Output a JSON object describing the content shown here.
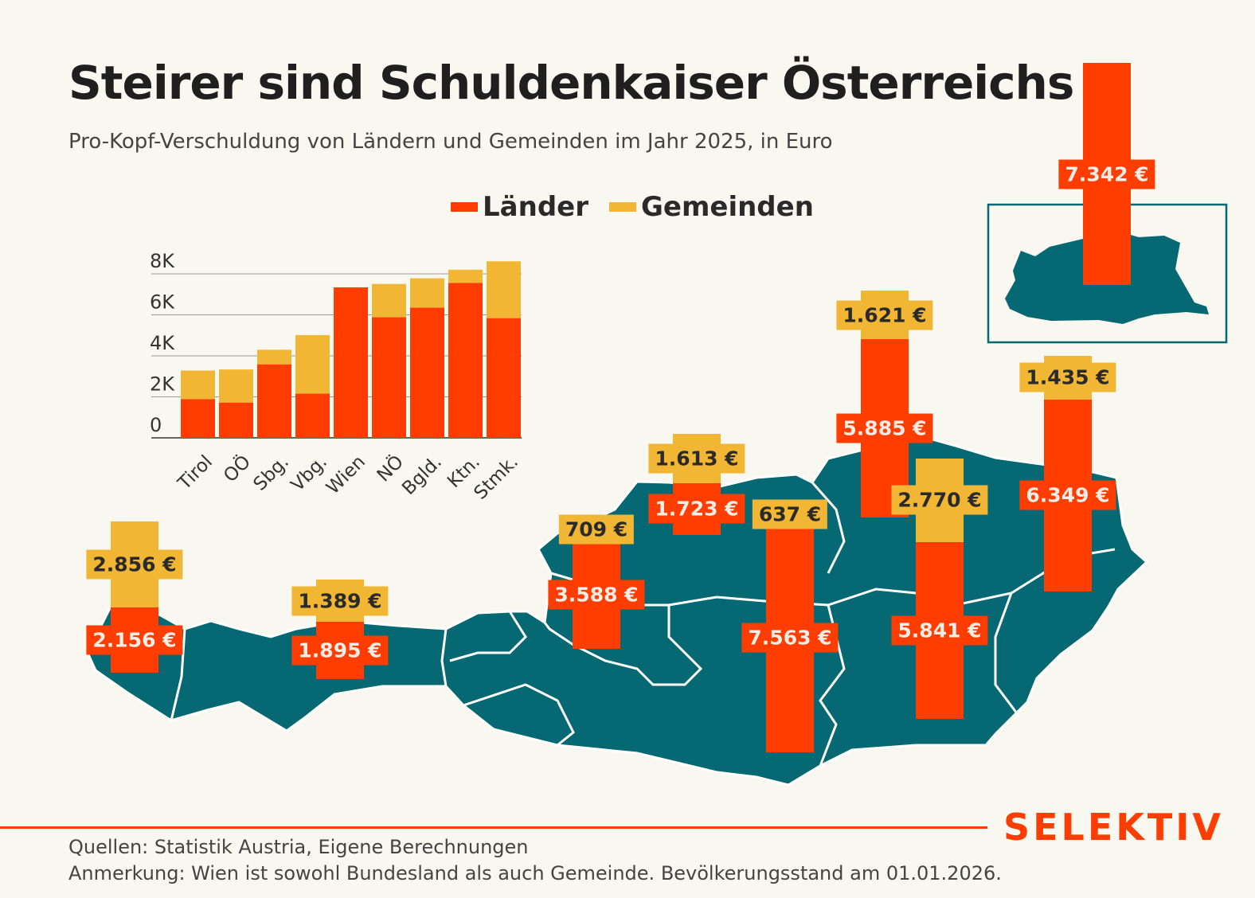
{
  "header": {
    "title": "Steirer sind Schuldenkaiser Österreichs",
    "subtitle": "Pro-Kopf-Verschuldung von Ländern und Gemeinden im Jahr 2025, in Euro"
  },
  "colors": {
    "laender": "#FF3D00",
    "gemeinden": "#F2B635",
    "map": "#066873",
    "background": "#F8F7F0"
  },
  "chart_data": [
    {
      "type": "bar",
      "stacked": true,
      "categories": [
        "Tirol",
        "OÖ",
        "Sbg.",
        "Vbg.",
        "Wien",
        "NÖ",
        "Bgld.",
        "Ktn.",
        "Stmk."
      ],
      "series": [
        {
          "name": "Länder",
          "values": [
            1895,
            1723,
            3588,
            2156,
            7342,
            5885,
            6349,
            7563,
            5841
          ]
        },
        {
          "name": "Gemeinden",
          "values": [
            1389,
            1613,
            709,
            2856,
            0,
            1621,
            1435,
            637,
            2770
          ]
        }
      ],
      "yticks": [
        "0",
        "2K",
        "4K",
        "6K",
        "8K"
      ],
      "ylim": [
        0,
        8000
      ],
      "grid": true,
      "legend": "top"
    },
    {
      "type": "map-bars",
      "regions": [
        {
          "name": "Vbg.",
          "laender": "2.156 €",
          "gemeinden": "2.856 €",
          "l": 2156,
          "g": 2856
        },
        {
          "name": "Tirol",
          "laender": "1.895 €",
          "gemeinden": "1.389 €",
          "l": 1895,
          "g": 1389
        },
        {
          "name": "Sbg.",
          "laender": "3.588 €",
          "gemeinden": "709 €",
          "l": 3588,
          "g": 709
        },
        {
          "name": "OÖ",
          "laender": "1.723 €",
          "gemeinden": "1.613 €",
          "l": 1723,
          "g": 1613
        },
        {
          "name": "Ktn.",
          "laender": "7.563 €",
          "gemeinden": "637 €",
          "l": 7563,
          "g": 637
        },
        {
          "name": "NÖ",
          "laender": "5.885 €",
          "gemeinden": "1.621 €",
          "l": 5885,
          "g": 1621
        },
        {
          "name": "Stmk.",
          "laender": "5.841 €",
          "gemeinden": "2.770 €",
          "l": 5841,
          "g": 2770
        },
        {
          "name": "Bgld.",
          "laender": "6.349 €",
          "gemeinden": "1.435 €",
          "l": 6349,
          "g": 1435
        },
        {
          "name": "Wien",
          "laender": "7.342 €",
          "gemeinden": null,
          "l": 7342,
          "g": 0
        }
      ]
    }
  ],
  "legend": {
    "laender": "Länder",
    "gemeinden": "Gemeinden"
  },
  "footer": {
    "sources": "Quellen: Statistik Austria, Eigene Berechnungen",
    "note": "Anmerkung: Wien ist sowohl Bundesland als auch Gemeinde. Bevölkerungsstand am 01.01.2026.",
    "logo": "SELEKTIV"
  }
}
